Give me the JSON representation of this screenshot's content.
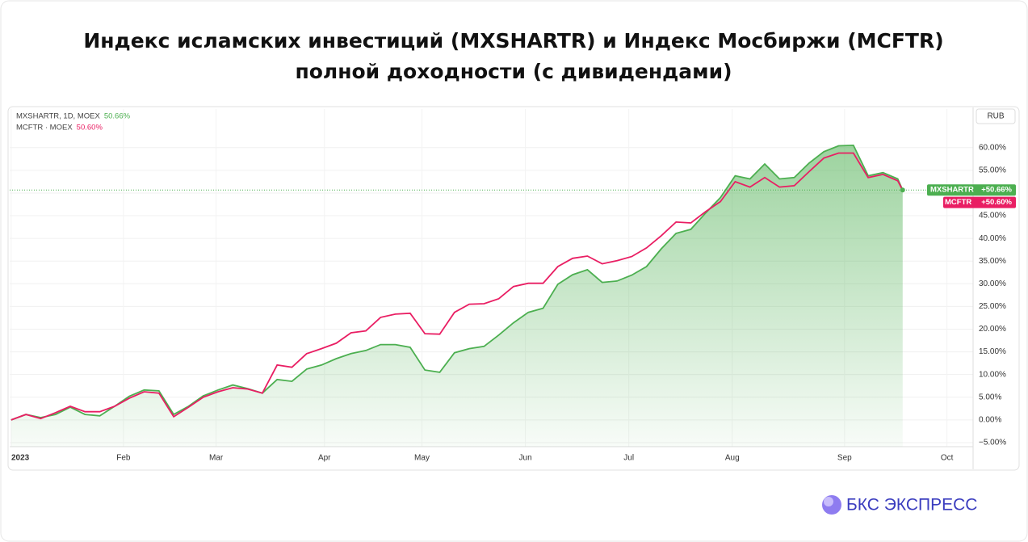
{
  "chart_data": {
    "type": "line",
    "title": [
      "Индекс исламских инвестиций (MXSHARTR) и Индекс Мосбиржи (MCFTR)",
      "полной доходности (с дивидендами)"
    ],
    "currency": "RUB",
    "x": [
      0,
      3,
      6,
      9,
      12,
      15,
      18,
      21,
      24,
      27,
      30,
      33,
      36,
      39,
      42,
      45,
      48,
      51,
      54,
      57,
      60,
      63,
      66,
      69,
      72,
      75,
      78,
      81,
      84,
      87,
      90,
      93,
      96,
      99,
      102,
      105,
      108,
      111,
      114,
      117,
      120,
      123,
      126,
      129,
      132,
      135,
      138,
      141,
      144,
      147,
      150,
      153,
      156,
      159,
      162,
      165,
      168,
      171,
      174,
      177,
      180,
      181
    ],
    "series": [
      {
        "name": "MXSHARTR",
        "legend": "MXSHARTR, 1D, MOEX",
        "legend_value": "50.66%",
        "tag_value": "+50.66%",
        "color": "#4caf50",
        "values": [
          0,
          1.2,
          0.5,
          1.2,
          2.8,
          1.2,
          0.9,
          3.0,
          5.2,
          6.6,
          6.4,
          1.2,
          3.0,
          5.3,
          6.6,
          7.7,
          6.9,
          5.9,
          8.9,
          8.5,
          11.2,
          12.1,
          13.5,
          14.6,
          15.3,
          16.6,
          16.6,
          16.0,
          11.0,
          10.5,
          14.8,
          15.7,
          16.2,
          18.7,
          21.4,
          23.7,
          24.6,
          29.9,
          32.0,
          33.1,
          30.3,
          30.6,
          31.9,
          33.8,
          37.7,
          41.1,
          42.0,
          45.6,
          49.0,
          53.8,
          53.1,
          56.4,
          53.1,
          53.4,
          56.6,
          59.1,
          60.4,
          60.5,
          53.8,
          54.5,
          53.1,
          50.66
        ]
      },
      {
        "name": "MCFTR",
        "legend": "MCFTR · MOEX",
        "legend_value": "50.60%",
        "tag_value": "+50.60%",
        "color": "#e91e63",
        "values": [
          0,
          1.2,
          0.3,
          1.6,
          3.0,
          1.8,
          1.8,
          3.0,
          4.8,
          6.2,
          5.9,
          0.7,
          2.8,
          5.0,
          6.2,
          7.1,
          6.8,
          5.9,
          12.1,
          11.6,
          14.6,
          15.7,
          16.9,
          19.2,
          19.6,
          22.6,
          23.3,
          23.5,
          19.0,
          18.9,
          23.7,
          25.5,
          25.6,
          26.7,
          29.4,
          30.1,
          30.1,
          33.8,
          35.6,
          36.1,
          34.4,
          35.1,
          36.0,
          37.9,
          40.6,
          43.6,
          43.4,
          45.9,
          48.1,
          52.5,
          51.3,
          53.4,
          51.3,
          51.6,
          54.7,
          57.7,
          58.8,
          58.8,
          53.4,
          54.1,
          52.7,
          50.6
        ]
      }
    ],
    "xlim": [
      -0.3,
      195.3
    ],
    "xticks": [
      {
        "value": 0,
        "label": "2023"
      },
      {
        "value": 22.8,
        "label": "Feb"
      },
      {
        "value": 41.6,
        "label": "Mar"
      },
      {
        "value": 63.6,
        "label": "Apr"
      },
      {
        "value": 83.4,
        "label": "May"
      },
      {
        "value": 104.4,
        "label": "Jun"
      },
      {
        "value": 125.4,
        "label": "Jul"
      },
      {
        "value": 146.4,
        "label": "Aug"
      },
      {
        "value": 169.2,
        "label": "Sep"
      },
      {
        "value": 190,
        "label": "Oct"
      }
    ],
    "ylim": [
      -5.9,
      68.5
    ],
    "yticks": [
      {
        "value": -5,
        "label": "−5.00%"
      },
      {
        "value": 0,
        "label": "0.00%"
      },
      {
        "value": 5,
        "label": "5.00%"
      },
      {
        "value": 10,
        "label": "10.00%"
      },
      {
        "value": 15,
        "label": "15.00%"
      },
      {
        "value": 20,
        "label": "20.00%"
      },
      {
        "value": 25,
        "label": "25.00%"
      },
      {
        "value": 30,
        "label": "30.00%"
      },
      {
        "value": 35,
        "label": "35.00%"
      },
      {
        "value": 40,
        "label": "40.00%"
      },
      {
        "value": 45,
        "label": "45.00%"
      },
      {
        "value": 50,
        "label": "50.00%"
      },
      {
        "value": 55,
        "label": "55.00%"
      },
      {
        "value": 60,
        "label": "60.00%"
      }
    ],
    "grid": true
  },
  "logo": "БКС ЭКСПРЕСС"
}
